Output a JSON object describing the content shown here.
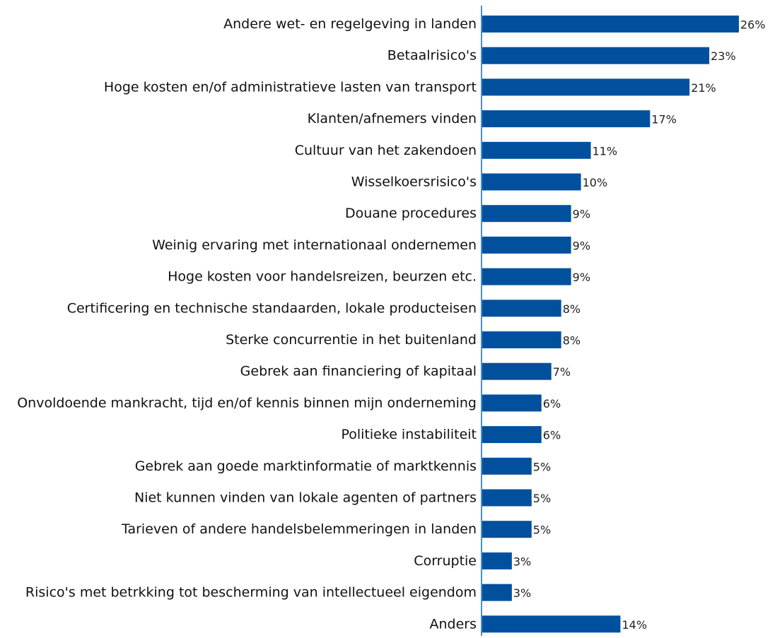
{
  "chart_data": {
    "type": "bar",
    "orientation": "horizontal",
    "categories": [
      "Andere wet- en regelgeving in landen",
      "Betaalrisico's",
      "Hoge kosten en/of administratieve lasten van transport",
      "Klanten/afnemers vinden",
      "Cultuur van het zakendoen",
      "Wisselkoersrisico's",
      "Douane procedures",
      "Weinig ervaring met internationaal ondernemen",
      "Hoge kosten voor handelsreizen, beurzen etc.",
      "Certificering en technische standaarden, lokale producteisen",
      "Sterke concurrentie in het buitenland",
      "Gebrek aan financiering of kapitaal",
      "Onvoldoende mankracht, tijd en/of kennis binnen mijn onderneming",
      "Politieke instabiliteit",
      "Gebrek aan goede marktinformatie of marktkennis",
      "Niet kunnen vinden van lokale agenten of partners",
      "Tarieven of andere handelsbelemmeringen in landen",
      "Corruptie",
      "Risico's met betrkking tot bescherming van intellectueel eigendom",
      "Anders"
    ],
    "values": [
      26,
      23,
      21,
      17,
      11,
      10,
      9,
      9,
      9,
      8,
      8,
      7,
      6,
      6,
      5,
      5,
      5,
      3,
      3,
      14
    ],
    "value_labels": [
      "26%",
      "23%",
      "21%",
      "17%",
      "11%",
      "10%",
      "9%",
      "9%",
      "9%",
      "8%",
      "8%",
      "7%",
      "6%",
      "6%",
      "5%",
      "5%",
      "5%",
      "3%",
      "3%",
      "14%"
    ],
    "unit": "%",
    "xlim": [
      0,
      26
    ],
    "bar_color": "#00509e",
    "axis_color": "#4a90c8",
    "grid": false,
    "legend": "none"
  }
}
